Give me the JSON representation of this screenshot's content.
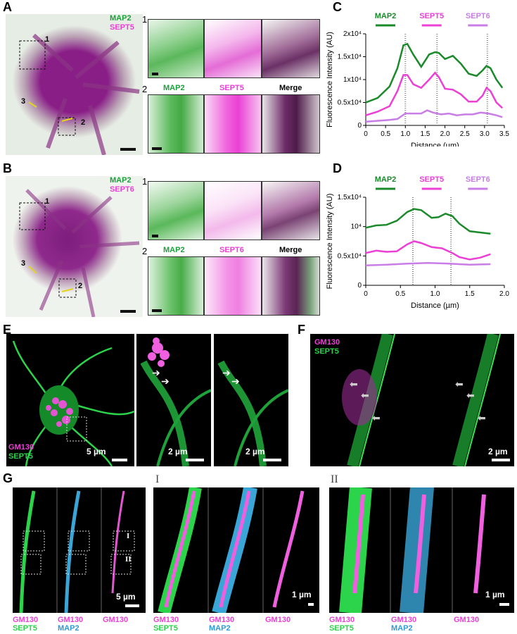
{
  "panels": {
    "A": {
      "letter": "A",
      "legend": [
        "MAP2",
        "SEPT5"
      ],
      "boxes": [
        "1",
        "2",
        "3"
      ],
      "row2_labels": [
        "MAP2",
        "SEPT5",
        "Merge"
      ]
    },
    "B": {
      "letter": "B",
      "legend": [
        "MAP2",
        "SEPT6"
      ],
      "boxes": [
        "1",
        "2",
        "3"
      ],
      "row2_labels": [
        "MAP2",
        "SEPT6",
        "Merge"
      ]
    },
    "C": {
      "letter": "C"
    },
    "D": {
      "letter": "D"
    },
    "E": {
      "letter": "E",
      "legend": [
        "GM130",
        "SEPT5"
      ],
      "scales": [
        "5 µm",
        "2 µm",
        "2 µm"
      ]
    },
    "F": {
      "letter": "F",
      "legend": [
        "GM130",
        "SEPT5"
      ],
      "scale": "2 µm"
    },
    "G": {
      "letter": "G",
      "sub_I": "I",
      "sub_II": "II",
      "scales": [
        "5 µm",
        "1 µm",
        "1 µm"
      ],
      "captions": {
        "merge1": "GM130",
        "merge2": "SEPT5",
        "mid1": "GM130",
        "mid2": "MAP2",
        "last": "GM130"
      }
    }
  },
  "chart_data": [
    {
      "type": "line",
      "panel": "C",
      "xlabel": "Distance (µm)",
      "ylabel": "Fluorescence Intensity (AU)",
      "xlim": [
        0,
        3.5
      ],
      "ylim": [
        0,
        20000
      ],
      "xticks": [
        "0",
        "0.5",
        "1.0",
        "1.5",
        "2.0",
        "2.5",
        "3.0",
        "3.5"
      ],
      "yticks": [
        "0",
        "0.5x10⁴",
        "1x10⁴",
        "1.5x10⁴",
        "2x10⁴"
      ],
      "legend_position": "top",
      "dotted_lines_x": [
        1.0,
        1.8,
        3.07
      ],
      "series": [
        {
          "name": "MAP2",
          "color": "#1a8a2a",
          "x": [
            0,
            0.3,
            0.6,
            0.8,
            0.95,
            1.05,
            1.2,
            1.4,
            1.6,
            1.75,
            1.85,
            2.0,
            2.2,
            2.4,
            2.6,
            2.8,
            2.95,
            3.05,
            3.15,
            3.3,
            3.45
          ],
          "y": [
            5000,
            6000,
            8500,
            12500,
            17500,
            17800,
            15500,
            12800,
            15500,
            16000,
            15800,
            14500,
            15200,
            13500,
            11300,
            10800,
            12000,
            13000,
            12500,
            10000,
            8200
          ]
        },
        {
          "name": "SEPT5",
          "color": "#ec3fd7",
          "x": [
            0,
            0.3,
            0.6,
            0.8,
            0.95,
            1.05,
            1.2,
            1.4,
            1.6,
            1.75,
            1.85,
            2.0,
            2.2,
            2.4,
            2.6,
            2.8,
            2.95,
            3.05,
            3.15,
            3.3,
            3.45
          ],
          "y": [
            2200,
            3000,
            4200,
            7500,
            11000,
            11000,
            9000,
            8200,
            10000,
            11500,
            10500,
            8000,
            7800,
            6800,
            5200,
            5200,
            6500,
            8200,
            7500,
            5000,
            3800
          ]
        },
        {
          "name": "SEPT6",
          "color": "#c97de6",
          "x": [
            0,
            0.3,
            0.6,
            0.8,
            1.0,
            1.2,
            1.4,
            1.55,
            1.7,
            1.9,
            2.1,
            2.3,
            2.5,
            2.7,
            2.9,
            3.1,
            3.3,
            3.45
          ],
          "y": [
            800,
            1000,
            1200,
            1400,
            2600,
            2600,
            2600,
            3300,
            2800,
            2400,
            2600,
            2200,
            2400,
            2400,
            2800,
            2600,
            2200,
            1800
          ]
        }
      ]
    },
    {
      "type": "line",
      "panel": "D",
      "xlabel": "Distance (µm)",
      "ylabel": "Fluorescence Intensity (AU)",
      "xlim": [
        0,
        2.0
      ],
      "ylim": [
        0,
        15000
      ],
      "xticks": [
        "0",
        "0.5",
        "1.0",
        "1.5",
        "2.0"
      ],
      "yticks": [
        "0",
        "0.5x10⁴",
        "10⁴",
        "1.5x10⁴"
      ],
      "legend_position": "top",
      "dotted_lines_x": [
        0.68,
        1.23
      ],
      "series": [
        {
          "name": "MAP2",
          "color": "#1a8a2a",
          "x": [
            0,
            0.15,
            0.3,
            0.45,
            0.6,
            0.7,
            0.8,
            0.95,
            1.05,
            1.15,
            1.25,
            1.35,
            1.5,
            1.65,
            1.8
          ],
          "y": [
            9800,
            10200,
            10300,
            11000,
            12500,
            13000,
            12800,
            11500,
            11600,
            12200,
            11800,
            10500,
            9200,
            9000,
            8800
          ]
        },
        {
          "name": "SEPT5",
          "color": "#ec3fd7",
          "x": [
            0,
            0.15,
            0.3,
            0.45,
            0.6,
            0.7,
            0.8,
            0.95,
            1.1,
            1.25,
            1.35,
            1.5,
            1.65,
            1.8
          ],
          "y": [
            5500,
            5900,
            5700,
            5800,
            7000,
            7500,
            7200,
            6500,
            6300,
            5500,
            4800,
            4400,
            4700,
            5300
          ]
        },
        {
          "name": "SEPT6",
          "color": "#c97de6",
          "x": [
            0,
            0.3,
            0.6,
            0.9,
            1.2,
            1.5,
            1.8
          ],
          "y": [
            3400,
            3500,
            3700,
            3800,
            3700,
            3500,
            3600
          ]
        }
      ]
    }
  ]
}
